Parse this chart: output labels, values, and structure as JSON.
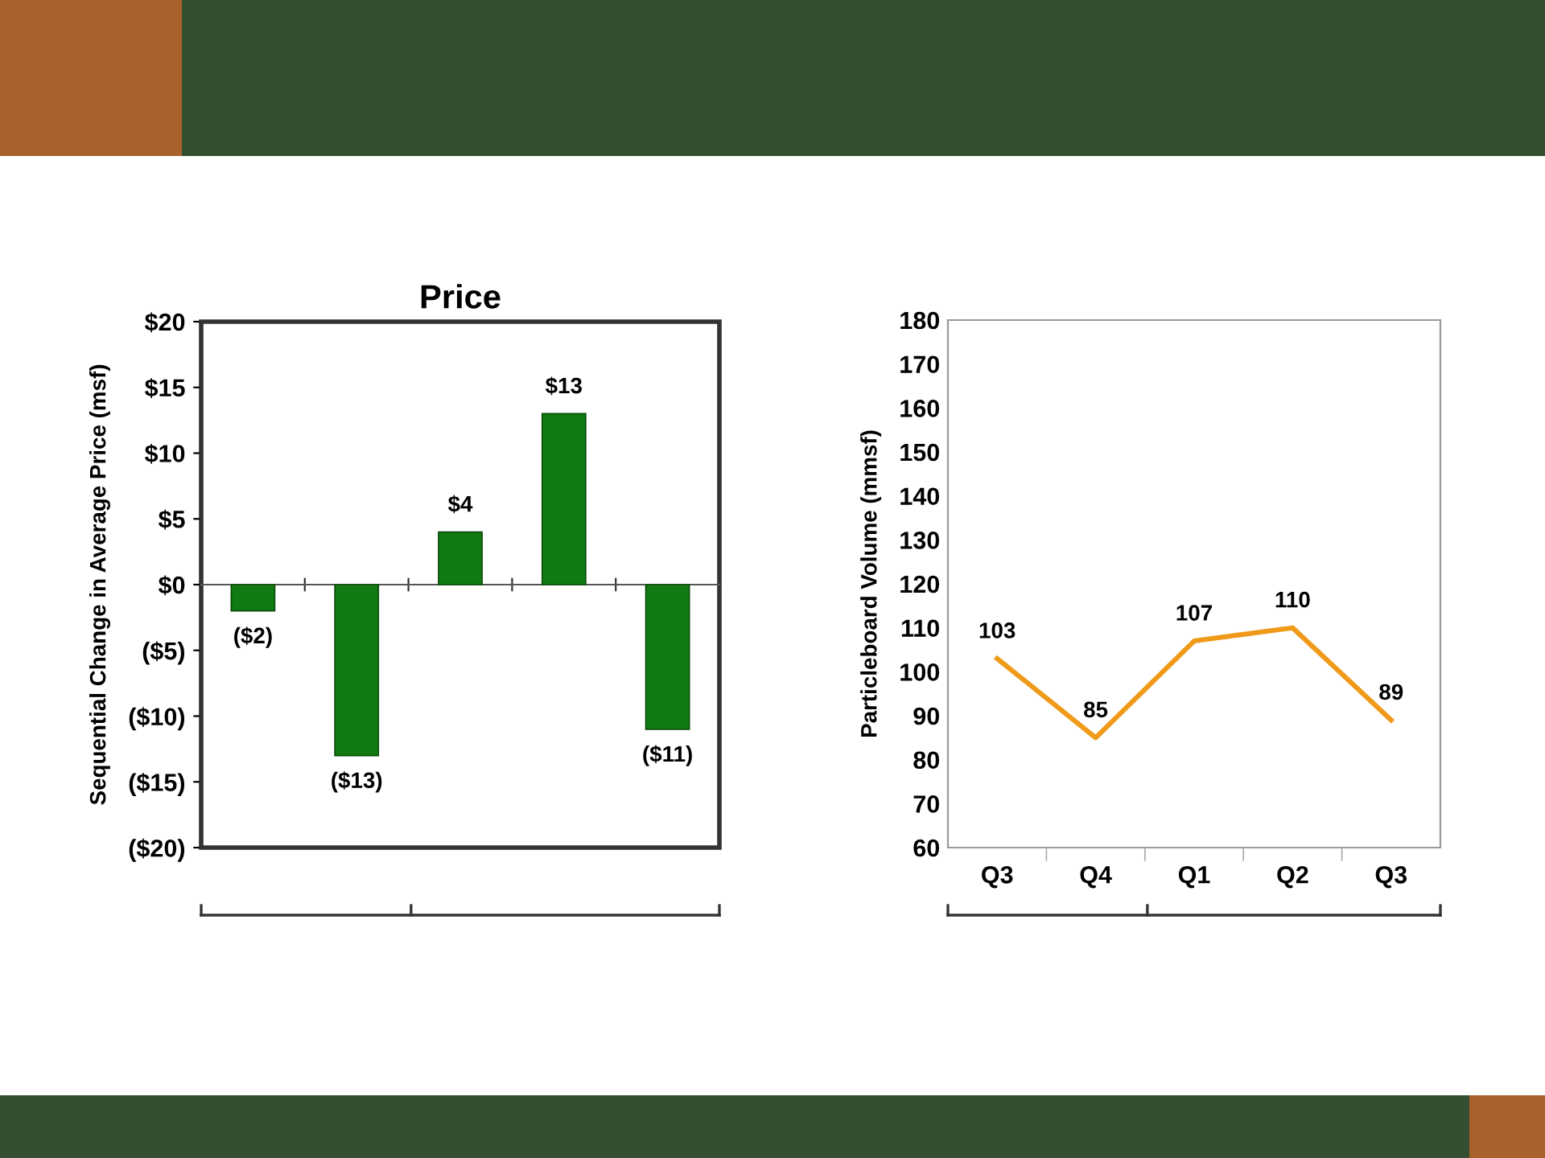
{
  "chart_data": [
    {
      "type": "bar",
      "title": "Price",
      "ylabel": "Sequential Change in Average Price (msf)",
      "categories": [
        null,
        null,
        null,
        null,
        null
      ],
      "values": [
        -2,
        -13,
        4,
        13,
        -11
      ],
      "value_labels": [
        "($2)",
        "($13)",
        "$4",
        "$13",
        "($11)"
      ],
      "color": "#117a11",
      "ylim": [
        -20,
        20
      ],
      "yticks": [
        {
          "value": -20,
          "label": "($20)"
        },
        {
          "value": -15,
          "label": "($15)"
        },
        {
          "value": -10,
          "label": "($10)"
        },
        {
          "value": -5,
          "label": "($5)"
        },
        {
          "value": 0,
          "label": "$0"
        },
        {
          "value": 5,
          "label": "$5"
        },
        {
          "value": 10,
          "label": "$10"
        },
        {
          "value": 15,
          "label": "$15"
        },
        {
          "value": 20,
          "label": "$20"
        }
      ]
    },
    {
      "type": "line",
      "ylabel": "Particleboard Volume (mmsf)",
      "categories": [
        "Q3",
        "Q4",
        "Q1",
        "Q2",
        "Q3"
      ],
      "values": [
        103,
        85,
        107,
        110,
        89
      ],
      "data_labels": true,
      "color": "#f09a1a",
      "ylim": [
        60,
        180
      ],
      "yticks": [
        60,
        70,
        80,
        90,
        100,
        110,
        120,
        130,
        140,
        150,
        160,
        170,
        180
      ]
    }
  ]
}
